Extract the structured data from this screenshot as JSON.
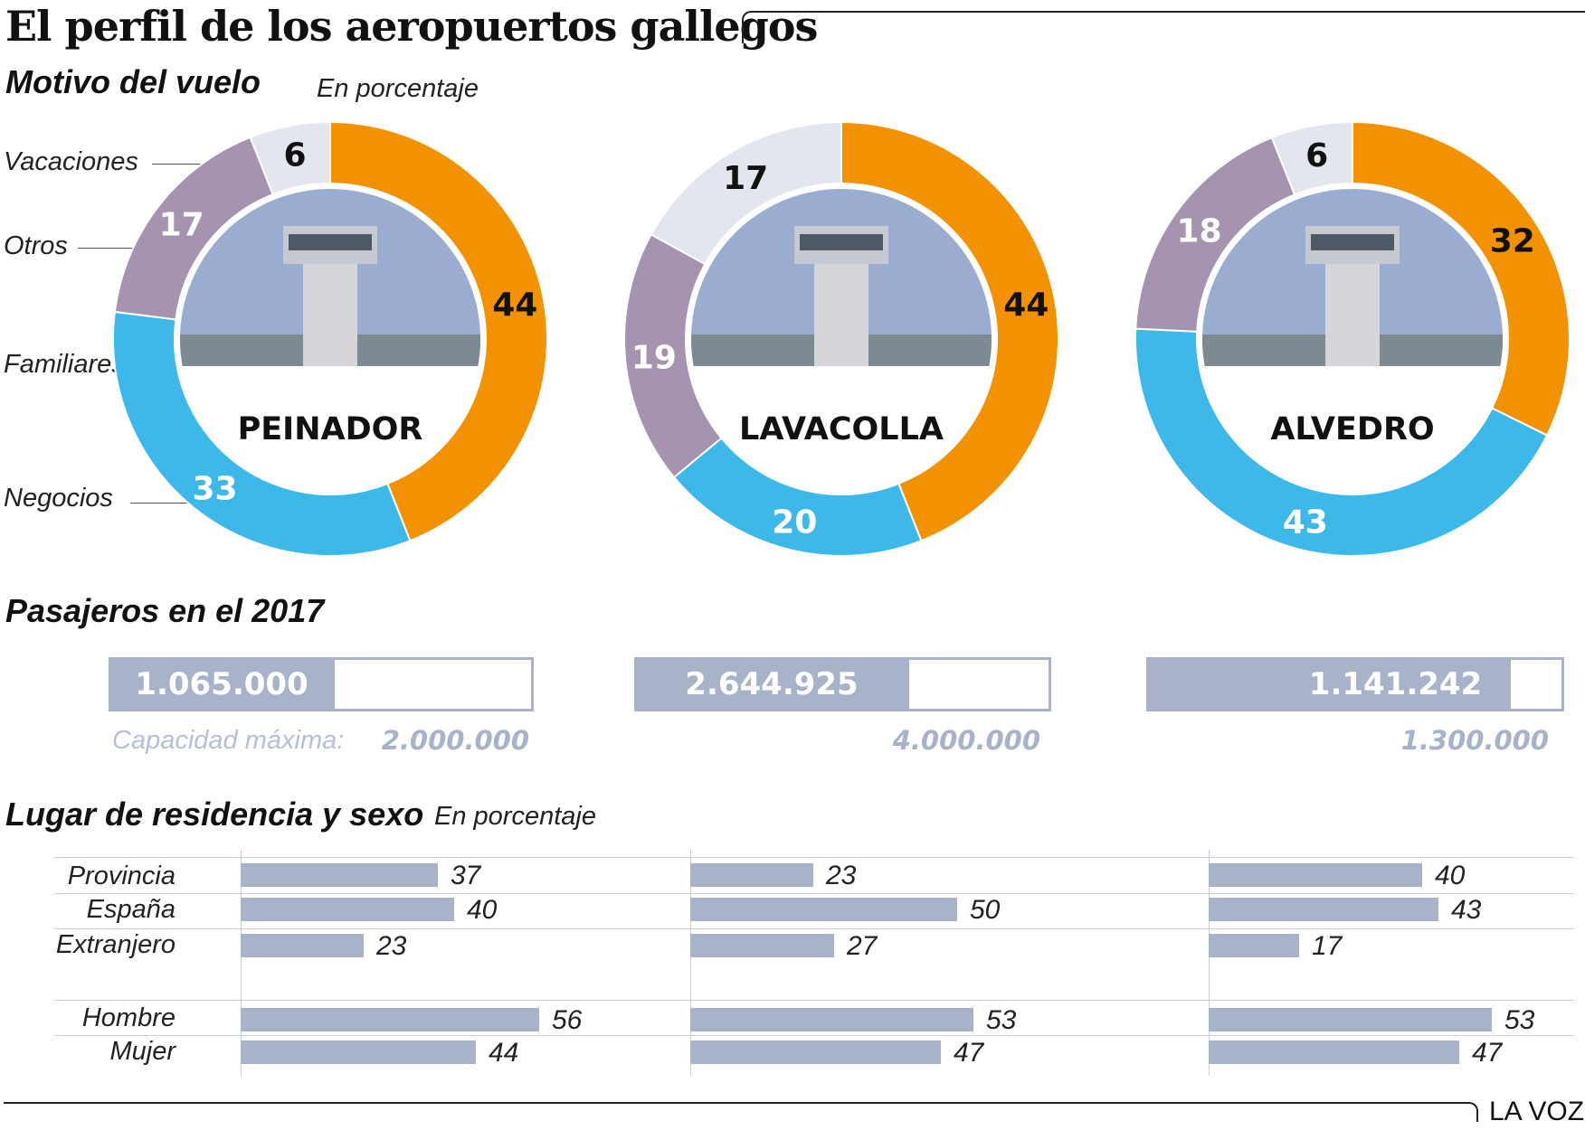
{
  "title": "El perfil de los aeropuertos gallegos",
  "brand": "LA VOZ",
  "colors": {
    "vacaciones": "#f39200",
    "negocios": "#3db9e9",
    "familiares": "#a593b0",
    "otros": "#e3e6ef",
    "bars": "#a8b3ca"
  },
  "chart_data": [
    {
      "type": "pie",
      "title": "Motivo del vuelo",
      "subtitle": "En porcentaje",
      "categories": [
        "Vacaciones",
        "Negocios",
        "Familiares",
        "Otros"
      ],
      "series": [
        {
          "name": "PEINADOR",
          "values": [
            44,
            33,
            17,
            6
          ]
        },
        {
          "name": "LAVACOLLA",
          "values": [
            44,
            20,
            19,
            17
          ]
        },
        {
          "name": "ALVEDRO",
          "values": [
            32,
            43,
            18,
            6
          ]
        }
      ]
    },
    {
      "type": "bar",
      "title": "Pasajeros en el 2017",
      "categories": [
        "PEINADOR",
        "LAVACOLLA",
        "ALVEDRO"
      ],
      "series": [
        {
          "name": "Pasajeros",
          "values": [
            1065000,
            2644925,
            1141242
          ],
          "labels": [
            "1.065.000",
            "2.644.925",
            "1.141.242"
          ]
        },
        {
          "name": "Capacidad máxima",
          "values": [
            2000000,
            4000000,
            1300000
          ],
          "labels": [
            "2.000.000",
            "4.000.000",
            "1.300.000"
          ]
        }
      ],
      "capacity_label": "Capacidad máxima:"
    },
    {
      "type": "bar",
      "title": "Lugar de residencia y sexo",
      "subtitle": "En porcentaje",
      "categories": [
        "Provincia",
        "España",
        "Extranjero",
        "Hombre",
        "Mujer"
      ],
      "series": [
        {
          "name": "PEINADOR",
          "values": [
            37,
            40,
            23,
            56,
            44
          ]
        },
        {
          "name": "LAVACOLLA",
          "values": [
            23,
            50,
            27,
            53,
            47
          ]
        },
        {
          "name": "ALVEDRO",
          "values": [
            40,
            43,
            17,
            53,
            47
          ]
        }
      ]
    }
  ]
}
